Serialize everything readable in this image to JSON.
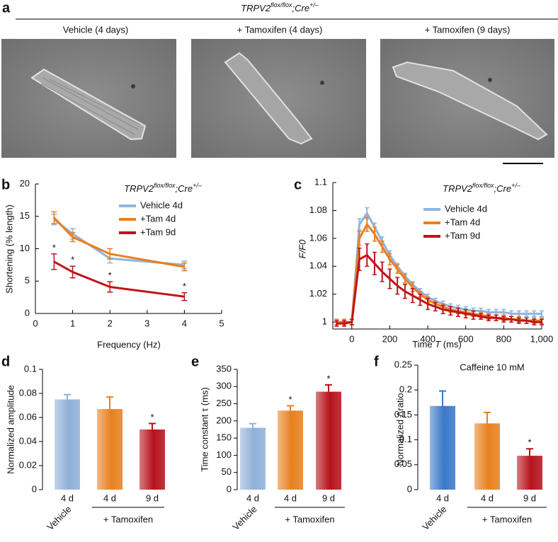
{
  "figure_a": {
    "panel": "a",
    "title": [
      "TRPV2",
      "flox/flox",
      ";Cre",
      "+/–"
    ],
    "images": [
      "Vehicle (4 days)",
      "+ Tamoxifen (4 days)",
      "+ Tamoxifen (9 days)"
    ]
  },
  "chart_data": [
    {
      "panel": "b",
      "type": "line",
      "title": [
        "TRPV2",
        "flox/flox",
        ";Cre",
        "+/–"
      ],
      "x_label": "Frequency (Hz)",
      "y_label": "Shortening (% length)",
      "x": [
        0.5,
        1,
        2,
        4
      ],
      "series": [
        {
          "name": "Vehicle 4d",
          "color": "#8fb4e0",
          "values": [
            14.5,
            12.3,
            8.5,
            7.5
          ],
          "errors": [
            0.8,
            0.8,
            0.7,
            0.6
          ]
        },
        {
          "name": "+Tam 4d",
          "color": "#e8801e",
          "values": [
            14.8,
            11.8,
            9.2,
            7.2
          ],
          "errors": [
            0.9,
            0.7,
            0.8,
            0.6
          ]
        },
        {
          "name": "+Tam 9d",
          "color": "#c0141b",
          "values": [
            8,
            6.4,
            4.1,
            2.6
          ],
          "errors": [
            1.2,
            0.9,
            0.8,
            0.6
          ],
          "significance": [
            "*",
            "*",
            "*",
            "*"
          ]
        }
      ],
      "xlim": [
        0,
        5
      ],
      "xticks": [
        0,
        1,
        2,
        3,
        4,
        5
      ],
      "ylim": [
        0,
        20
      ],
      "yticks": [
        0,
        5,
        10,
        15,
        20
      ],
      "legend": "upper right"
    },
    {
      "panel": "c",
      "type": "line",
      "title": [
        "TRPV2",
        "flox/flox",
        ";Cre",
        "+/–"
      ],
      "x_label": [
        "Time ",
        "T",
        " (ms)"
      ],
      "y_label": "F/F0",
      "x": [
        -80,
        -40,
        0,
        40,
        80,
        120,
        160,
        200,
        240,
        280,
        320,
        360,
        400,
        440,
        480,
        520,
        560,
        600,
        640,
        680,
        720,
        760,
        800,
        840,
        880,
        920,
        960,
        1000
      ],
      "series": [
        {
          "name": "Vehicle 4d",
          "color": "#8fb4e0",
          "values": [
            1.0,
            1.0,
            1.0,
            1.07,
            1.078,
            1.068,
            1.058,
            1.048,
            1.04,
            1.033,
            1.027,
            1.022,
            1.018,
            1.015,
            1.013,
            1.011,
            1.01,
            1.009,
            1.008,
            1.008,
            1.007,
            1.007,
            1.007,
            1.006,
            1.006,
            1.006,
            1.006,
            1.006
          ],
          "errors": [
            0.002,
            0.002,
            0.002,
            0.004,
            0.004,
            0.003,
            0.003,
            0.003,
            0.002,
            0.002,
            0.002,
            0.002,
            0.002,
            0.002,
            0.002,
            0.002,
            0.002,
            0.002,
            0.002,
            0.002,
            0.002,
            0.002,
            0.002,
            0.002,
            0.002,
            0.002,
            0.002,
            0.002
          ]
        },
        {
          "name": "+Tam 4d",
          "color": "#e8801e",
          "values": [
            1.0,
            1.0,
            1.0,
            1.06,
            1.07,
            1.063,
            1.054,
            1.045,
            1.038,
            1.031,
            1.025,
            1.02,
            1.016,
            1.013,
            1.011,
            1.009,
            1.008,
            1.007,
            1.006,
            1.005,
            1.004,
            1.003,
            1.003,
            1.002,
            1.002,
            1.001,
            1.001,
            1.001
          ],
          "errors": [
            0.002,
            0.002,
            0.002,
            0.005,
            0.005,
            0.005,
            0.004,
            0.004,
            0.003,
            0.003,
            0.003,
            0.002,
            0.002,
            0.002,
            0.002,
            0.002,
            0.002,
            0.002,
            0.002,
            0.002,
            0.002,
            0.002,
            0.002,
            0.002,
            0.002,
            0.002,
            0.002,
            0.002
          ]
        },
        {
          "name": "+Tam 9d",
          "color": "#c0141b",
          "values": [
            0.999,
            0.999,
            1.0,
            1.045,
            1.048,
            1.042,
            1.036,
            1.031,
            1.026,
            1.022,
            1.019,
            1.016,
            1.013,
            1.011,
            1.009,
            1.008,
            1.007,
            1.006,
            1.005,
            1.004,
            1.003,
            1.003,
            1.002,
            1.002,
            1.001,
            1.001,
            1.0,
            1.0
          ],
          "errors": [
            0.002,
            0.002,
            0.002,
            0.008,
            0.008,
            0.008,
            0.007,
            0.007,
            0.006,
            0.005,
            0.005,
            0.004,
            0.004,
            0.003,
            0.003,
            0.003,
            0.003,
            0.003,
            0.003,
            0.002,
            0.002,
            0.002,
            0.002,
            0.002,
            0.002,
            0.002,
            0.002,
            0.002
          ]
        }
      ],
      "xlim": [
        -100,
        1000
      ],
      "xticks": [
        0,
        200,
        400,
        600,
        800,
        {
          "value": 1000,
          "label": "1,000"
        }
      ],
      "ylim": [
        0.995,
        1.1
      ],
      "yticks": [
        1,
        1.02,
        1.04,
        1.06,
        1.08,
        1.1
      ],
      "legend": "upper right"
    },
    {
      "panel": "d",
      "type": "bar",
      "y_label": "Normalized amplitude",
      "categories": [
        "4 d",
        "4 d",
        "9 d"
      ],
      "values": [
        0.075,
        0.067,
        0.05
      ],
      "errors": [
        0.004,
        0.01,
        0.005
      ],
      "colors": [
        "#8fb0d8",
        "#e8801e",
        "#b5121b"
      ],
      "significance": [
        null,
        null,
        "*"
      ],
      "group_labels": [
        "Vehicle",
        "+ Tamoxifen"
      ],
      "ylim": [
        0,
        0.1
      ],
      "yticks": [
        0,
        0.02,
        0.04,
        0.06,
        0.08,
        0.1
      ]
    },
    {
      "panel": "e",
      "type": "bar",
      "y_label": "Time constant τ (ms)",
      "categories": [
        "4 d",
        "4 d",
        "9 d"
      ],
      "values": [
        180,
        230,
        285
      ],
      "errors": [
        12,
        14,
        20
      ],
      "colors": [
        "#8fb0d8",
        "#e8801e",
        "#b5121b"
      ],
      "significance": [
        null,
        "*",
        "*"
      ],
      "group_labels": [
        "Vehicle",
        "+ Tamoxifen"
      ],
      "ylim": [
        0,
        350
      ],
      "yticks": [
        0,
        50,
        100,
        150,
        200,
        250,
        300,
        350
      ]
    },
    {
      "panel": "f",
      "type": "bar",
      "y_label": "Normalized Δratio",
      "annotation": "Caffeine 10 mM",
      "categories": [
        "4 d",
        "4 d",
        "9 d"
      ],
      "values": [
        0.168,
        0.133,
        0.068
      ],
      "errors": [
        0.03,
        0.022,
        0.014
      ],
      "colors": [
        "#3a78c8",
        "#e8801e",
        "#b5121b"
      ],
      "significance": [
        null,
        null,
        "*"
      ],
      "group_labels": [
        "Vehicle",
        "+ Tamoxifen"
      ],
      "ylim": [
        0,
        0.25
      ],
      "yticks": [
        0,
        0.05,
        0.1,
        0.15,
        0.2,
        0.25
      ]
    }
  ]
}
